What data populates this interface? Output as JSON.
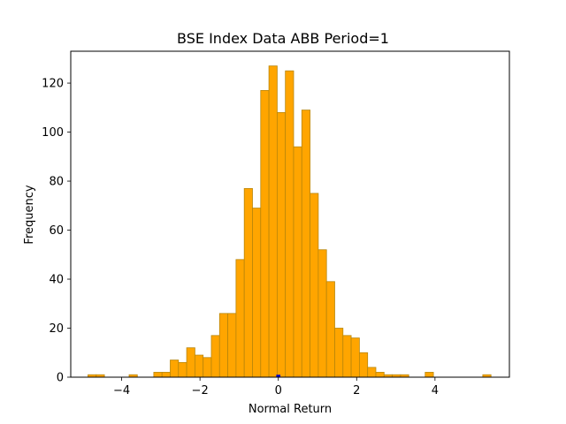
{
  "chart_data": {
    "type": "bar",
    "title": "BSE Index Data ABB Period=1",
    "xlabel": "Normal Return",
    "ylabel": "Frequency",
    "xlim": [
      -5.3,
      5.9
    ],
    "ylim": [
      0,
      133
    ],
    "xticks": [
      -4,
      -2,
      0,
      2,
      4
    ],
    "xtick_labels": [
      "−4",
      "−2",
      "0",
      "2",
      "4"
    ],
    "yticks": [
      0,
      20,
      40,
      60,
      80,
      100,
      120
    ],
    "ytick_labels": [
      "0",
      "20",
      "40",
      "60",
      "80",
      "100",
      "120"
    ],
    "bin_start": -4.86,
    "bin_width": 0.21,
    "counts": [
      1,
      1,
      0,
      0,
      0,
      1,
      0,
      0,
      2,
      2,
      7,
      6,
      12,
      9,
      8,
      17,
      26,
      26,
      48,
      77,
      69,
      117,
      127,
      108,
      125,
      94,
      109,
      75,
      52,
      39,
      20,
      17,
      16,
      10,
      4,
      2,
      1,
      1,
      1,
      0,
      0,
      2,
      0,
      0,
      0,
      0,
      0,
      0,
      1
    ],
    "bar_color": "#FFA500",
    "bar_edge_color": "#B8860B",
    "secondary_series_color": "#0000CD",
    "secondary_series_counts": [
      {
        "x": 0.0,
        "count": 1
      }
    ],
    "grid": false,
    "legend": "none"
  }
}
